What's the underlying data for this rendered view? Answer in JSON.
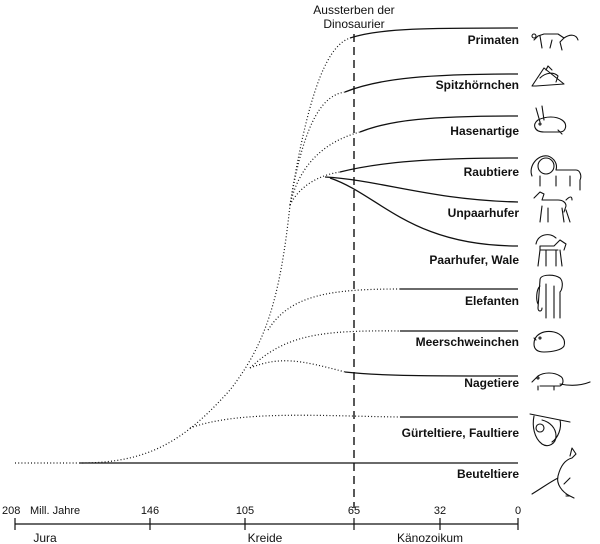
{
  "event_label_line1": "Aussterben der",
  "event_label_line2": "Dinosaurier",
  "groups": [
    {
      "label": "Primaten",
      "icon": "lemur-icon"
    },
    {
      "label": "Spitzhörnchen",
      "icon": "treeshrew-icon"
    },
    {
      "label": "Hasenartige",
      "icon": "rabbit-icon"
    },
    {
      "label": "Raubtiere",
      "icon": "lion-icon"
    },
    {
      "label": "Unpaarhufer",
      "icon": "horse-icon"
    },
    {
      "label": "Paarhufer, Wale",
      "icon": "ibex-icon"
    },
    {
      "label": "Elefanten",
      "icon": "elephant-icon"
    },
    {
      "label": "Meerschweinchen",
      "icon": "guinea-pig-icon"
    },
    {
      "label": "Nagetiere",
      "icon": "rat-icon"
    },
    {
      "label": "Gürteltiere, Faultiere",
      "icon": "sloth-icon"
    },
    {
      "label": "Beuteltiere",
      "icon": "kangaroo-icon"
    }
  ],
  "axis": {
    "unit_label": "Mill. Jahre",
    "ticks": [
      "208",
      "146",
      "105",
      "65",
      "32",
      "0"
    ],
    "tick_values": [
      208,
      146,
      105,
      65,
      32,
      0
    ]
  },
  "periods": [
    "Jura",
    "Kreide",
    "Känozoikum"
  ]
}
